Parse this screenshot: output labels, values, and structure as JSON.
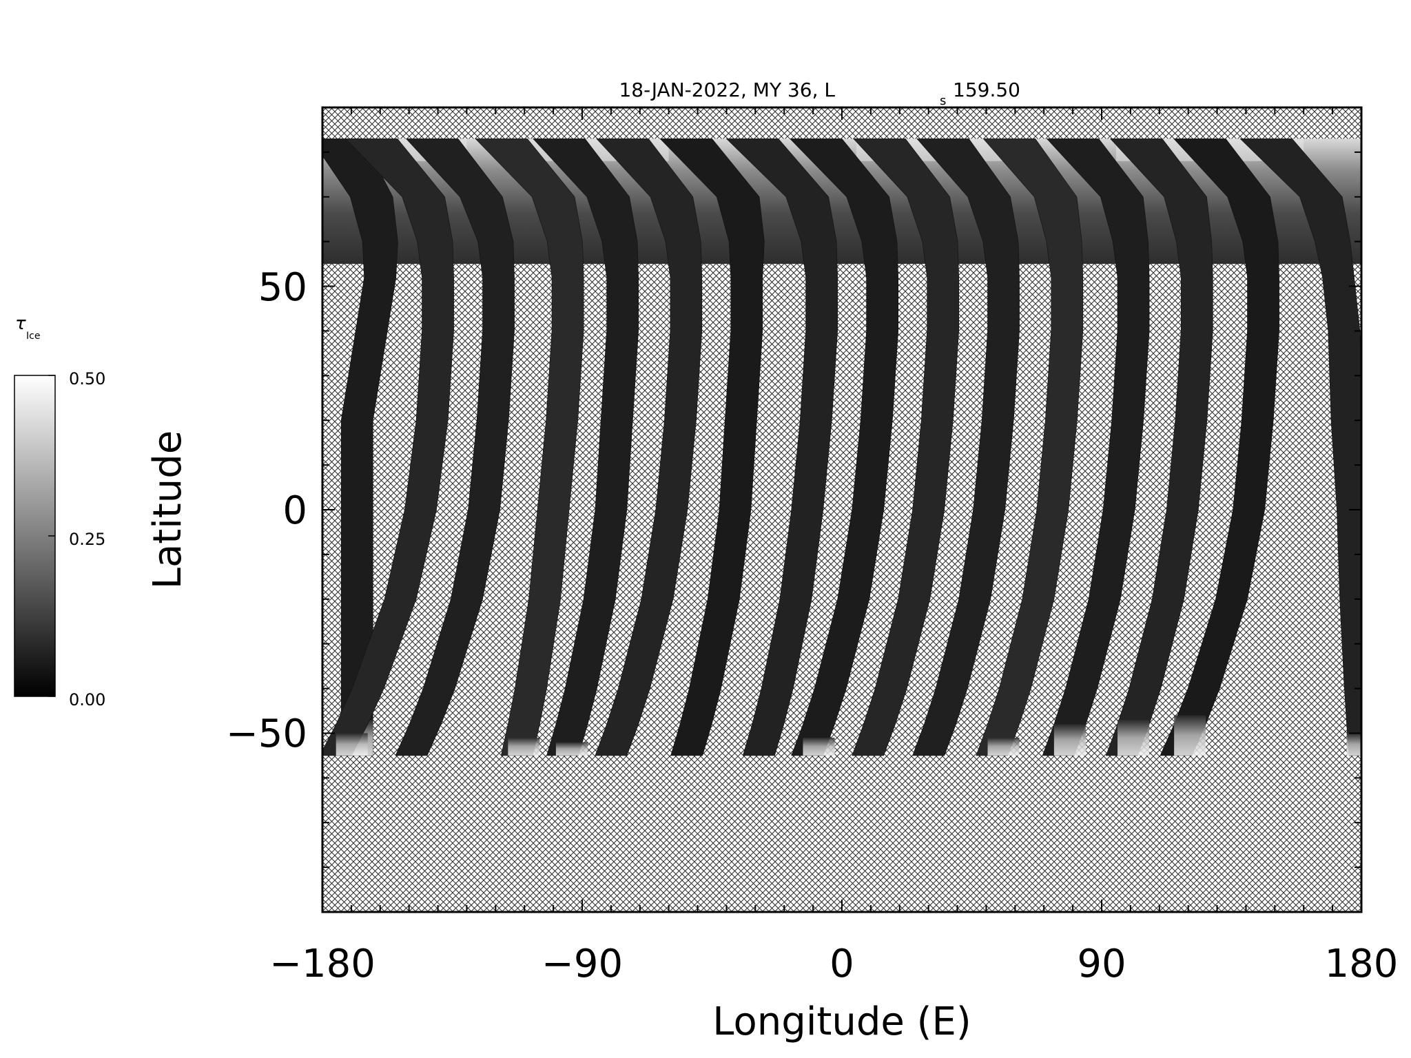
{
  "chart_data": {
    "type": "heatmap",
    "title": "18-JAN-2022, MY 36,  L",
    "title_subscript": "s",
    "title_suffix": "159.50",
    "xlabel": "Longitude (E)",
    "ylabel": "Latitude",
    "xlim": [
      -180,
      180
    ],
    "ylim": [
      -90,
      90
    ],
    "x_ticks": [
      -180,
      -90,
      0,
      90,
      180
    ],
    "x_tick_labels": [
      "−180",
      "−90",
      "0",
      "90",
      "180"
    ],
    "y_ticks": [
      -50,
      0,
      50
    ],
    "y_tick_labels": [
      "−50",
      "0",
      "50"
    ],
    "x_minor_step": 10,
    "y_minor_step": 10,
    "colorscale": "grayscale",
    "colorbar": {
      "label": "τ",
      "label_subscript": "Ice",
      "range": [
        0.0,
        0.5
      ],
      "ticks": [
        0.0,
        0.25,
        0.5
      ],
      "tick_labels": [
        "0.00",
        "0.25",
        "0.50"
      ]
    },
    "no_data_fill": "crosshatch",
    "coverage_top_latitude": 83,
    "coverage_lat_samples": [
      83,
      70,
      60,
      52,
      40,
      20,
      0,
      -20,
      -30,
      -40,
      -48,
      -55
    ],
    "swaths": [
      {
        "lon": [
          -175,
          -163,
          -160,
          -160,
          -163,
          -168,
          -168,
          -168
        ],
        "south_lat": -55,
        "south_cap_lat": -47
      },
      {
        "lon": [
          -163,
          -145,
          -141,
          -140,
          -140,
          -142,
          -146,
          -153
        ],
        "south_lat": -55,
        "south_cap_lat": -50
      },
      {
        "lon": [
          -142,
          -125,
          -120,
          -119,
          -119,
          -121,
          -124,
          -130
        ],
        "south_lat": -55,
        "south_cap_lat": -55
      },
      {
        "lon": [
          -118,
          -100,
          -96,
          -95,
          -95,
          -97,
          -100,
          -103
        ],
        "south_lat": -55,
        "south_cap_lat": -51
      },
      {
        "lon": [
          -98,
          -81,
          -77,
          -76,
          -76,
          -78,
          -80,
          -84
        ],
        "south_lat": -55,
        "south_cap_lat": -52
      },
      {
        "lon": [
          -76,
          -59,
          -55,
          -54,
          -54,
          -56,
          -59,
          -64
        ],
        "south_lat": -55,
        "south_cap_lat": -55
      },
      {
        "lon": [
          -54,
          -36,
          -33,
          -33,
          -33,
          -35,
          -37,
          -41
        ],
        "south_lat": -55,
        "south_cap_lat": -55
      },
      {
        "lon": [
          -31,
          -12,
          -8,
          -7,
          -7,
          -9,
          -12,
          -16
        ],
        "south_lat": -55,
        "south_cap_lat": -55
      },
      {
        "lon": [
          -9,
          9,
          13,
          14,
          14,
          12,
          9,
          4
        ],
        "south_lat": -55,
        "south_cap_lat": -51
      },
      {
        "lon": [
          13,
          30,
          34,
          35,
          35,
          33,
          30,
          25
        ],
        "south_lat": -55,
        "south_cap_lat": -55
      },
      {
        "lon": [
          35,
          51,
          55,
          56,
          56,
          54,
          51,
          46
        ],
        "south_lat": -55,
        "south_cap_lat": -55
      },
      {
        "lon": [
          58,
          74,
          77,
          78,
          78,
          76,
          73,
          68
        ],
        "south_lat": -55,
        "south_cap_lat": -51
      },
      {
        "lon": [
          80,
          97,
          100,
          101,
          101,
          99,
          96,
          91
        ],
        "south_lat": -55,
        "south_cap_lat": -48
      },
      {
        "lon": [
          102,
          119,
          122,
          123,
          123,
          121,
          118,
          113
        ],
        "south_lat": -55,
        "south_cap_lat": -47
      },
      {
        "lon": [
          124,
          141,
          145,
          146,
          146,
          144,
          141,
          135
        ],
        "south_lat": -55,
        "south_cap_lat": -46
      },
      {
        "lon": [
          147,
          166,
          170,
          172,
          174,
          175,
          177,
          178
        ],
        "south_lat": -55,
        "south_cap_lat": -50
      }
    ],
    "northern_cap_bright_lon_ranges": [
      [
        -165,
        -130
      ],
      [
        -110,
        -60
      ],
      [
        5,
        65
      ],
      [
        95,
        160
      ]
    ]
  }
}
